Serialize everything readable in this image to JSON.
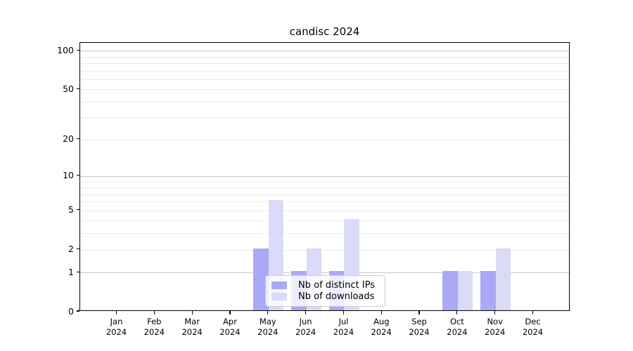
{
  "figure": {
    "title": "candisc 2024"
  },
  "chart_data": {
    "type": "bar",
    "title": "candisc 2024",
    "categories": [
      "Jan",
      "Feb",
      "Mar",
      "Apr",
      "May",
      "Jun",
      "Jul",
      "Aug",
      "Sep",
      "Oct",
      "Nov",
      "Dec"
    ],
    "category_year": "2024",
    "series": [
      {
        "name": "Nb of distinct IPs",
        "color": "#a9a9f5",
        "values": [
          0,
          0,
          0,
          0,
          2,
          1,
          1,
          0,
          0,
          1,
          1,
          0
        ]
      },
      {
        "name": "Nb of downloads",
        "color": "#dadaf9",
        "values": [
          0,
          0,
          0,
          0,
          6,
          2,
          4,
          0,
          0,
          1,
          2,
          0
        ]
      }
    ],
    "xlabel": "",
    "ylabel": "",
    "yscale": "log1p",
    "ylim": [
      0,
      115
    ],
    "yticks": [
      0,
      1,
      2,
      5,
      10,
      20,
      50,
      100
    ],
    "grid": "horizontal log minors light, decades darker",
    "legend_position": "inside lower center",
    "colors": {
      "grid_minor": "#ececec",
      "grid_major": "#c8c8c8",
      "axis": "#000000"
    }
  }
}
